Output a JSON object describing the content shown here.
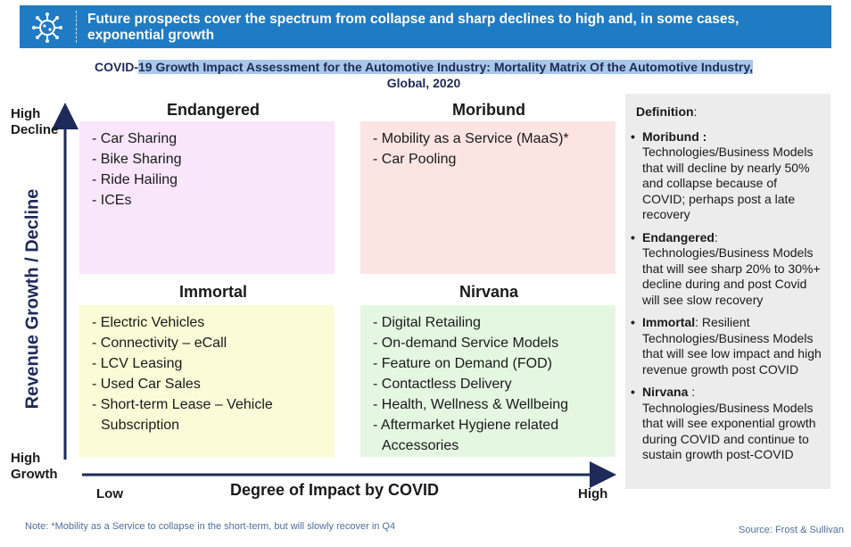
{
  "banner": {
    "icon": "virus-icon",
    "text": "Future prospects cover the spectrum from collapse and sharp declines to high and, in some cases, exponential growth"
  },
  "title": {
    "part1": "COVID-",
    "part2": "19 Growth Impact Assessment for the Automotive Industry: Mortality Matrix Of the Automotive Industry,",
    "line2": "Global, 2020"
  },
  "axes": {
    "y_label": "Revenue Growth / Decline",
    "y_top": "High Decline",
    "y_bottom": "High Growth",
    "x_label": "Degree of Impact by COVID",
    "x_low": "Low",
    "x_high": "High"
  },
  "quadrants": {
    "endangered": {
      "title": "Endangered",
      "items": [
        "- Car Sharing",
        "- Bike Sharing",
        "- Ride Hailing",
        "- ICEs"
      ]
    },
    "moribund": {
      "title": "Moribund",
      "items": [
        "- Mobility as a Service (MaaS)*",
        "- Car Pooling"
      ]
    },
    "immortal": {
      "title": "Immortal",
      "items": [
        "- Electric Vehicles",
        "- Connectivity – eCall",
        "- LCV Leasing",
        "- Used Car Sales",
        "- Short-term Lease – Vehicle Subscription"
      ]
    },
    "nirvana": {
      "title": "Nirvana",
      "items": [
        "- Digital Retailing",
        "- On-demand Service Models",
        "- Feature on Demand (FOD)",
        "- Contactless Delivery",
        "- Health, Wellness & Wellbeing",
        "- Aftermarket Hygiene related Accessories"
      ]
    }
  },
  "definitions": {
    "heading": "Definition",
    "heading_suffix": ":",
    "bullet": "•",
    "items": [
      {
        "term": "Moribund :",
        "text": " Technologies/Business Models that will decline by nearly 50% and collapse because of COVID; perhaps post a late recovery"
      },
      {
        "term": "Endangered",
        "text": ": Technologies/Business Models that will see sharp 20% to 30%+ decline during and post Covid will see slow recovery"
      },
      {
        "term": "Immortal",
        "text": ": Resilient Technologies/Business Models that will see low impact and high revenue growth post COVID"
      },
      {
        "term": "Nirvana",
        "text": " : Technologies/Business Models that will see exponential growth during COVID and continue to sustain growth post-COVID"
      }
    ]
  },
  "note": "Note: *Mobility as a Service to collapse in the short-term, but will slowly recover in Q4",
  "source": "Source: Frost & Sullivan",
  "colors": {
    "banner": "#1f7bc4",
    "endangered": "#f9e6fb",
    "moribund": "#fbe4e2",
    "immortal": "#fbfbd8",
    "nirvana": "#e4f8e1",
    "axis": "#1e2a5a"
  }
}
